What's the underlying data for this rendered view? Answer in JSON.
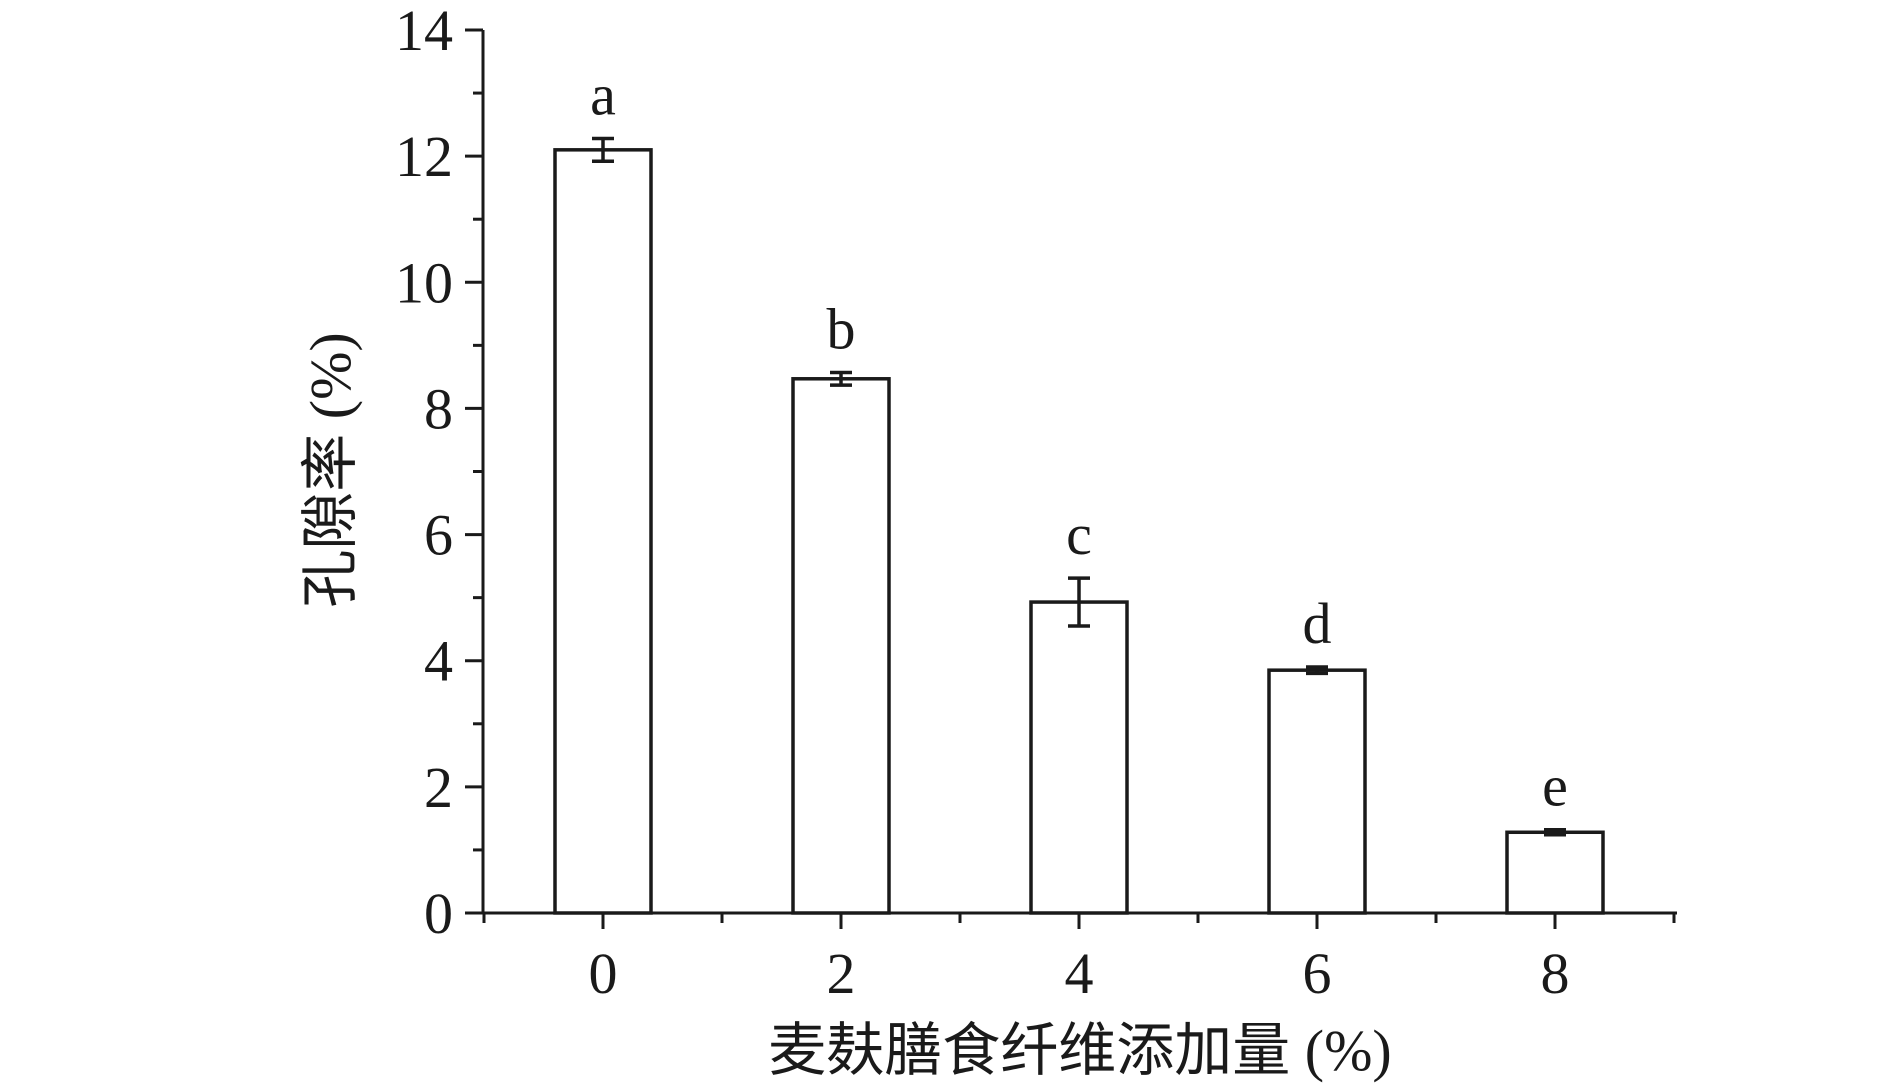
{
  "chart_data": {
    "type": "bar",
    "categories": [
      "0",
      "2",
      "4",
      "6",
      "8"
    ],
    "values": [
      12.1,
      8.47,
      4.93,
      3.85,
      1.28
    ],
    "errors": [
      0.18,
      0.1,
      0.38,
      0.05,
      0.04
    ],
    "significance_labels": [
      "a",
      "b",
      "c",
      "d",
      "e"
    ],
    "xlabel": "麦麸膳食纤维添加量 (%)",
    "ylabel": "孔隙率 (%)",
    "ylim": [
      0,
      14
    ],
    "yticks": [
      "0",
      "2",
      "4",
      "6",
      "8",
      "10",
      "12",
      "14"
    ],
    "grid": false,
    "bar_fill": "#ffffff",
    "bar_stroke": "#1a1a1a"
  }
}
